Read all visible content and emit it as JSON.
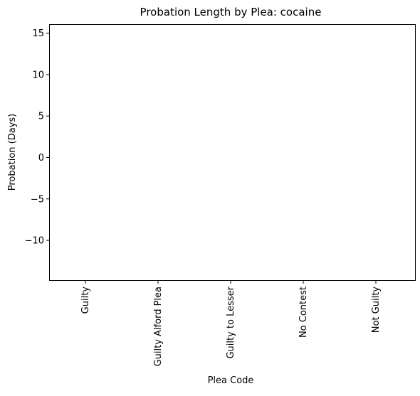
{
  "chart_data": {
    "type": "bar",
    "title": "Probation Length by Plea: cocaine",
    "xlabel": "Plea Code",
    "ylabel": "Probation (Days)",
    "categories": [
      "Guilty",
      "Guilty Alford Plea",
      "Guilty to Lesser",
      "No Contest",
      "Not Guilty"
    ],
    "values": [
      0,
      0,
      0,
      0,
      0
    ],
    "ylim": [
      -14.8,
      16
    ],
    "yticks": [
      -10,
      -5,
      0,
      5,
      10,
      15
    ],
    "ytick_labels": [
      "−10",
      "−5",
      "0",
      "5",
      "10",
      "15"
    ],
    "grid": false,
    "legend": "none"
  }
}
